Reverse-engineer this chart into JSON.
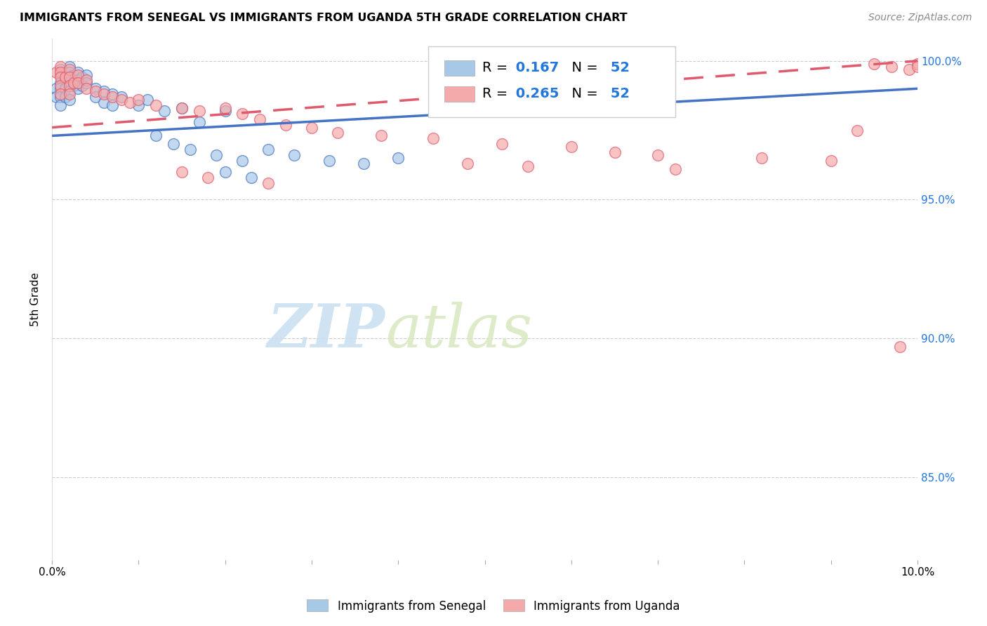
{
  "title": "IMMIGRANTS FROM SENEGAL VS IMMIGRANTS FROM UGANDA 5TH GRADE CORRELATION CHART",
  "source": "Source: ZipAtlas.com",
  "ylabel": "5th Grade",
  "ylabel_right_ticks": [
    "100.0%",
    "95.0%",
    "90.0%",
    "85.0%"
  ],
  "ylabel_right_vals": [
    1.0,
    0.95,
    0.9,
    0.85
  ],
  "R_senegal": 0.167,
  "N_senegal": 52,
  "R_uganda": 0.265,
  "N_uganda": 52,
  "color_senegal": "#a8c8e8",
  "color_uganda": "#f4aaaa",
  "line_color_senegal": "#4472c4",
  "line_color_uganda": "#e05a6e",
  "watermark_zip": "ZIP",
  "watermark_atlas": "atlas",
  "senegal_x": [
    0.0005,
    0.0005,
    0.001,
    0.001,
    0.001,
    0.001,
    0.001,
    0.001,
    0.0015,
    0.0015,
    0.0015,
    0.0015,
    0.002,
    0.002,
    0.002,
    0.002,
    0.002,
    0.002,
    0.0025,
    0.0025,
    0.003,
    0.003,
    0.003,
    0.0035,
    0.0035,
    0.004,
    0.004,
    0.005,
    0.005,
    0.006,
    0.006,
    0.007,
    0.007,
    0.008,
    0.01,
    0.011,
    0.013,
    0.015,
    0.017,
    0.02,
    0.012,
    0.014,
    0.016,
    0.019,
    0.022,
    0.025,
    0.028,
    0.032,
    0.036,
    0.04,
    0.02,
    0.023
  ],
  "senegal_y": [
    0.99,
    0.987,
    0.997,
    0.995,
    0.992,
    0.99,
    0.987,
    0.984,
    0.996,
    0.993,
    0.99,
    0.987,
    0.998,
    0.996,
    0.994,
    0.992,
    0.989,
    0.986,
    0.995,
    0.991,
    0.996,
    0.993,
    0.99,
    0.994,
    0.991,
    0.995,
    0.992,
    0.99,
    0.987,
    0.989,
    0.985,
    0.988,
    0.984,
    0.987,
    0.984,
    0.986,
    0.982,
    0.983,
    0.978,
    0.982,
    0.973,
    0.97,
    0.968,
    0.966,
    0.964,
    0.968,
    0.966,
    0.964,
    0.963,
    0.965,
    0.96,
    0.958
  ],
  "uganda_x": [
    0.0005,
    0.001,
    0.001,
    0.001,
    0.001,
    0.001,
    0.0015,
    0.002,
    0.002,
    0.002,
    0.002,
    0.0025,
    0.003,
    0.003,
    0.004,
    0.004,
    0.005,
    0.006,
    0.007,
    0.008,
    0.009,
    0.01,
    0.012,
    0.015,
    0.017,
    0.02,
    0.022,
    0.024,
    0.027,
    0.03,
    0.033,
    0.038,
    0.044,
    0.052,
    0.06,
    0.065,
    0.07,
    0.082,
    0.09,
    0.048,
    0.055,
    0.072,
    0.015,
    0.018,
    0.025,
    0.095,
    0.097,
    0.099,
    0.1,
    0.1,
    0.098,
    0.093
  ],
  "uganda_y": [
    0.996,
    0.998,
    0.996,
    0.994,
    0.991,
    0.988,
    0.994,
    0.997,
    0.994,
    0.991,
    0.988,
    0.992,
    0.995,
    0.992,
    0.993,
    0.99,
    0.989,
    0.988,
    0.987,
    0.986,
    0.985,
    0.986,
    0.984,
    0.983,
    0.982,
    0.983,
    0.981,
    0.979,
    0.977,
    0.976,
    0.974,
    0.973,
    0.972,
    0.97,
    0.969,
    0.967,
    0.966,
    0.965,
    0.964,
    0.963,
    0.962,
    0.961,
    0.96,
    0.958,
    0.956,
    0.999,
    0.998,
    0.997,
    0.999,
    0.998,
    0.897,
    0.975
  ],
  "xmin": 0.0,
  "xmax": 0.1,
  "ymin": 0.82,
  "ymax": 1.008
}
